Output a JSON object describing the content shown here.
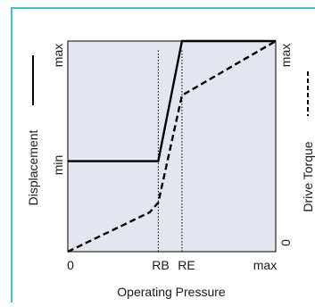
{
  "chart_data": {
    "type": "line",
    "xlabel": "Operating Pressure",
    "x_ticks": [
      {
        "label": "0",
        "value": 0
      },
      {
        "label": "RB",
        "value": 0.435
      },
      {
        "label": "RE",
        "value": 0.549
      },
      {
        "label": "max",
        "value": 1
      }
    ],
    "left_axis": {
      "label": "Displacement",
      "ticks": [
        {
          "label": "min",
          "value": 0.43
        },
        {
          "label": "max",
          "value": 1
        }
      ]
    },
    "right_axis": {
      "label": "Drive Torque",
      "ticks": [
        {
          "label": "0",
          "value": 0
        },
        {
          "label": "max",
          "value": 1
        }
      ]
    },
    "series": [
      {
        "name": "Displacement",
        "axis": "left",
        "line_style": "solid",
        "color": "#000000",
        "points": [
          [
            0,
            0.43
          ],
          [
            0.435,
            0.43
          ],
          [
            0.549,
            1
          ],
          [
            1,
            1
          ]
        ]
      },
      {
        "name": "Drive Torque",
        "axis": "right",
        "line_style": "dashed",
        "color": "#000000",
        "points": [
          [
            0,
            0
          ],
          [
            0.394,
            0.187
          ],
          [
            0.435,
            0.233
          ],
          [
            0.549,
            0.742
          ],
          [
            1,
            1
          ]
        ]
      }
    ],
    "reference_lines": [
      {
        "x": 0.435,
        "style": "dotted"
      },
      {
        "x": 0.549,
        "style": "dotted"
      }
    ],
    "plot_background": "#e3e5ef",
    "frame_color": "#3ec2d2",
    "grid": false
  }
}
